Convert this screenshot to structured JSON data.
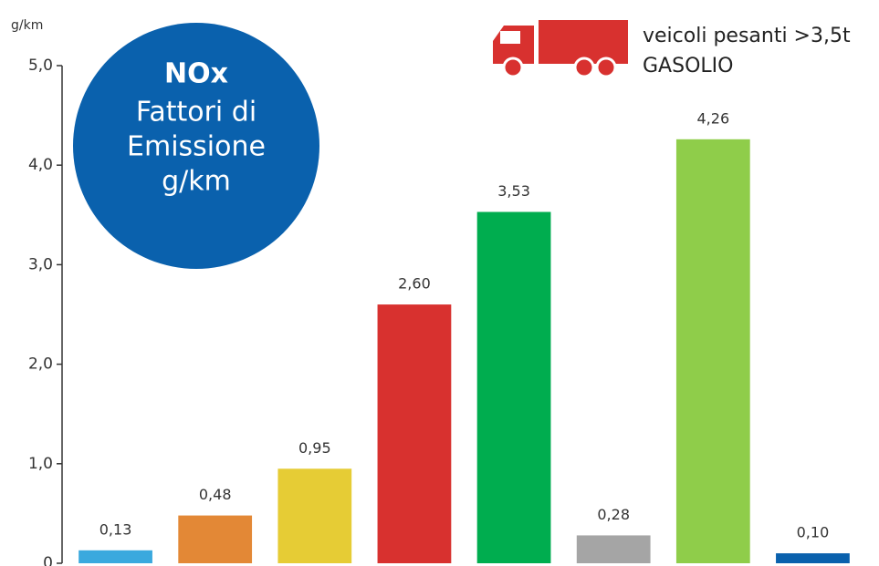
{
  "chart_data": {
    "type": "bar",
    "title": "NOx",
    "subtitle": [
      "Fattori di",
      "Emissione",
      "g/km"
    ],
    "y_label": "g/km",
    "annotation": [
      "veicoli pesanti >3,5t",
      "GASOLIO"
    ],
    "categories": [
      null,
      null,
      null,
      null,
      null,
      null,
      null,
      null
    ],
    "values": [
      0.13,
      0.48,
      0.95,
      2.6,
      3.53,
      0.28,
      4.26,
      0.1
    ],
    "value_labels": [
      "0,13",
      "0,48",
      "0,95",
      "2,60",
      "3,53",
      "0,28",
      "4,26",
      "0,10"
    ],
    "colors": [
      "#3aa9de",
      "#e38836",
      "#e6cc35",
      "#d8312f",
      "#00ad4f",
      "#a5a5a5",
      "#8fcd4a",
      "#0a61ad"
    ],
    "ylim": [
      0,
      5.0
    ],
    "yticks": [
      0,
      {
        "value": 1.0,
        "label": "1,0"
      },
      {
        "value": 2.0,
        "label": "2,0"
      },
      {
        "value": 3.0,
        "label": "3,0"
      },
      {
        "value": 4.0,
        "label": "4,0"
      },
      {
        "value": 5.0,
        "label": "5,0"
      }
    ],
    "grid": false
  }
}
